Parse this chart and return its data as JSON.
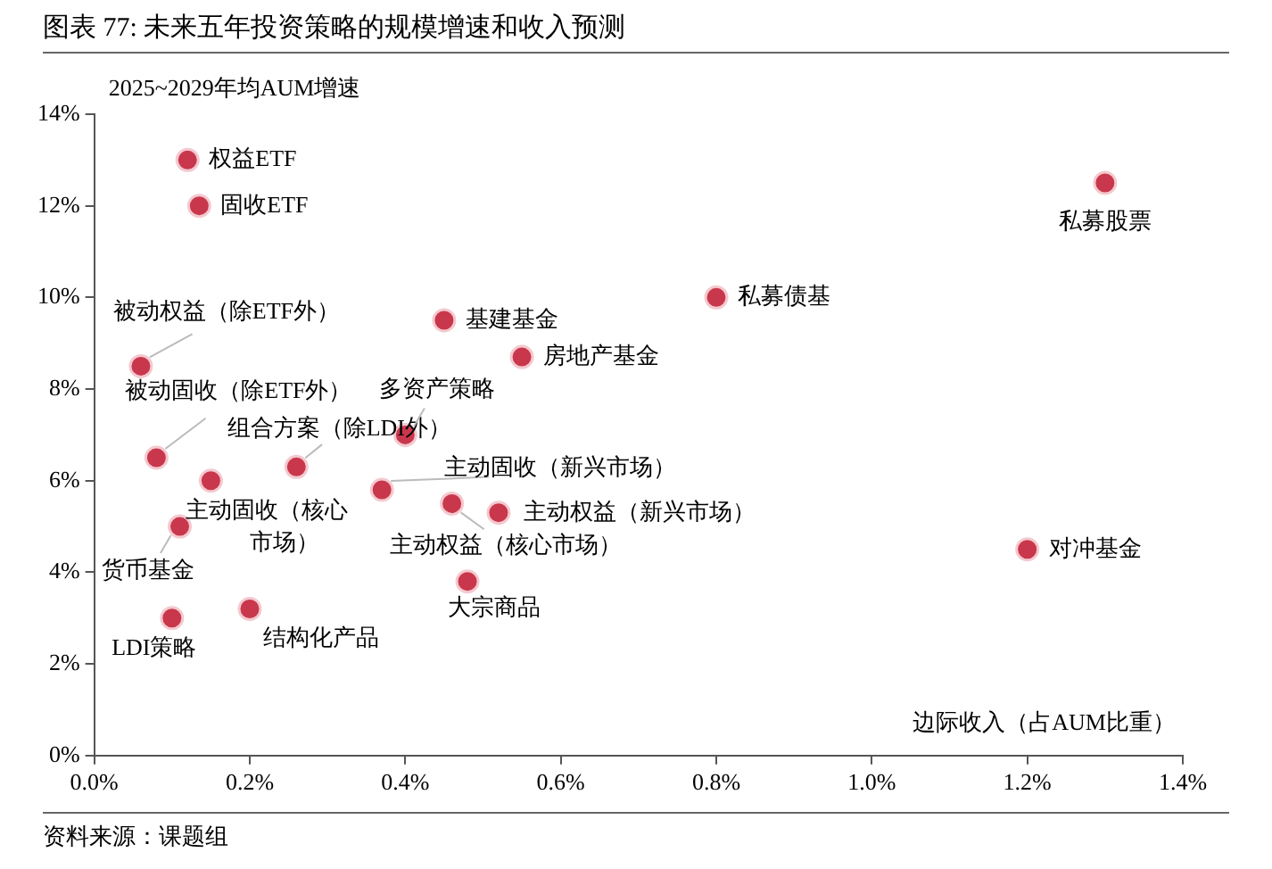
{
  "chart_data": {
    "type": "scatter",
    "title": "图表 77: 未来五年投资策略的规模增速和收入预测",
    "xlabel": "边际收入（占AUM比重）",
    "ylabel": "2025~2029年均AUM增速",
    "x": [
      0.12,
      0.135,
      0.06,
      0.08,
      0.15,
      0.11,
      0.1,
      0.2,
      0.26,
      0.4,
      0.37,
      0.46,
      0.52,
      0.48,
      0.45,
      0.55,
      0.8,
      1.3,
      1.2
    ],
    "series": [
      {
        "color": "#c9374c",
        "values": [
          13.0,
          12.0,
          8.5,
          6.5,
          6.0,
          5.0,
          3.0,
          3.2,
          6.3,
          7.0,
          5.8,
          5.5,
          5.3,
          3.8,
          9.5,
          8.7,
          10.0,
          12.5,
          4.5
        ]
      }
    ],
    "annotations": [
      {
        "text": "权益ETF",
        "x": 0.12,
        "y": 13.0
      },
      {
        "text": "固收ETF",
        "x": 0.135,
        "y": 12.0
      },
      {
        "text": "被动权益（除ETF外）",
        "x": 0.06,
        "y": 8.5
      },
      {
        "text": "被动固收（除ETF外）",
        "x": 0.08,
        "y": 6.5
      },
      {
        "text": "主动固收（核心市场）",
        "x": 0.15,
        "y": 6.0
      },
      {
        "text": "货币基金",
        "x": 0.11,
        "y": 5.0
      },
      {
        "text": "LDI策略",
        "x": 0.1,
        "y": 3.0
      },
      {
        "text": "结构化产品",
        "x": 0.2,
        "y": 3.2
      },
      {
        "text": "组合方案（除LDI外）",
        "x": 0.26,
        "y": 6.3
      },
      {
        "text": "多资产策略",
        "x": 0.4,
        "y": 7.0
      },
      {
        "text": "主动固收（新兴市场）",
        "x": 0.37,
        "y": 5.8
      },
      {
        "text": "主动权益（核心市场）",
        "x": 0.46,
        "y": 5.5
      },
      {
        "text": "主动权益（新兴市场）",
        "x": 0.52,
        "y": 5.3
      },
      {
        "text": "大宗商品",
        "x": 0.48,
        "y": 3.8
      },
      {
        "text": "基建基金",
        "x": 0.45,
        "y": 9.5
      },
      {
        "text": "房地产基金",
        "x": 0.55,
        "y": 8.7
      },
      {
        "text": "私募债基",
        "x": 0.8,
        "y": 10.0
      },
      {
        "text": "私募股票",
        "x": 1.3,
        "y": 12.5
      },
      {
        "text": "对冲基金",
        "x": 1.2,
        "y": 4.5
      },
      "资料来源：课题组"
    ],
    "xlim": [
      0,
      1.4
    ],
    "xticks": [
      {
        "value": 0,
        "label": "0.0%"
      },
      {
        "value": 0.2,
        "label": "0.2%"
      },
      {
        "value": 0.4,
        "label": "0.4%"
      },
      {
        "value": 0.6,
        "label": "0.6%"
      },
      {
        "value": 0.8,
        "label": "0.8%"
      },
      {
        "value": 1.0,
        "label": "1.0%"
      },
      {
        "value": 1.2,
        "label": "1.2%"
      },
      {
        "value": 1.4,
        "label": "1.4%"
      }
    ],
    "ylim": [
      0,
      14
    ],
    "yticks": [
      {
        "value": 0,
        "label": "0%"
      },
      {
        "value": 2,
        "label": "2%"
      },
      {
        "value": 4,
        "label": "4%"
      },
      {
        "value": 6,
        "label": "6%"
      },
      {
        "value": 8,
        "label": "8%"
      },
      {
        "value": 10,
        "label": "10%"
      },
      {
        "value": 12,
        "label": "12%"
      },
      {
        "value": 14,
        "label": "14%"
      }
    ],
    "grid": false,
    "legend": false,
    "marker": "circle"
  }
}
